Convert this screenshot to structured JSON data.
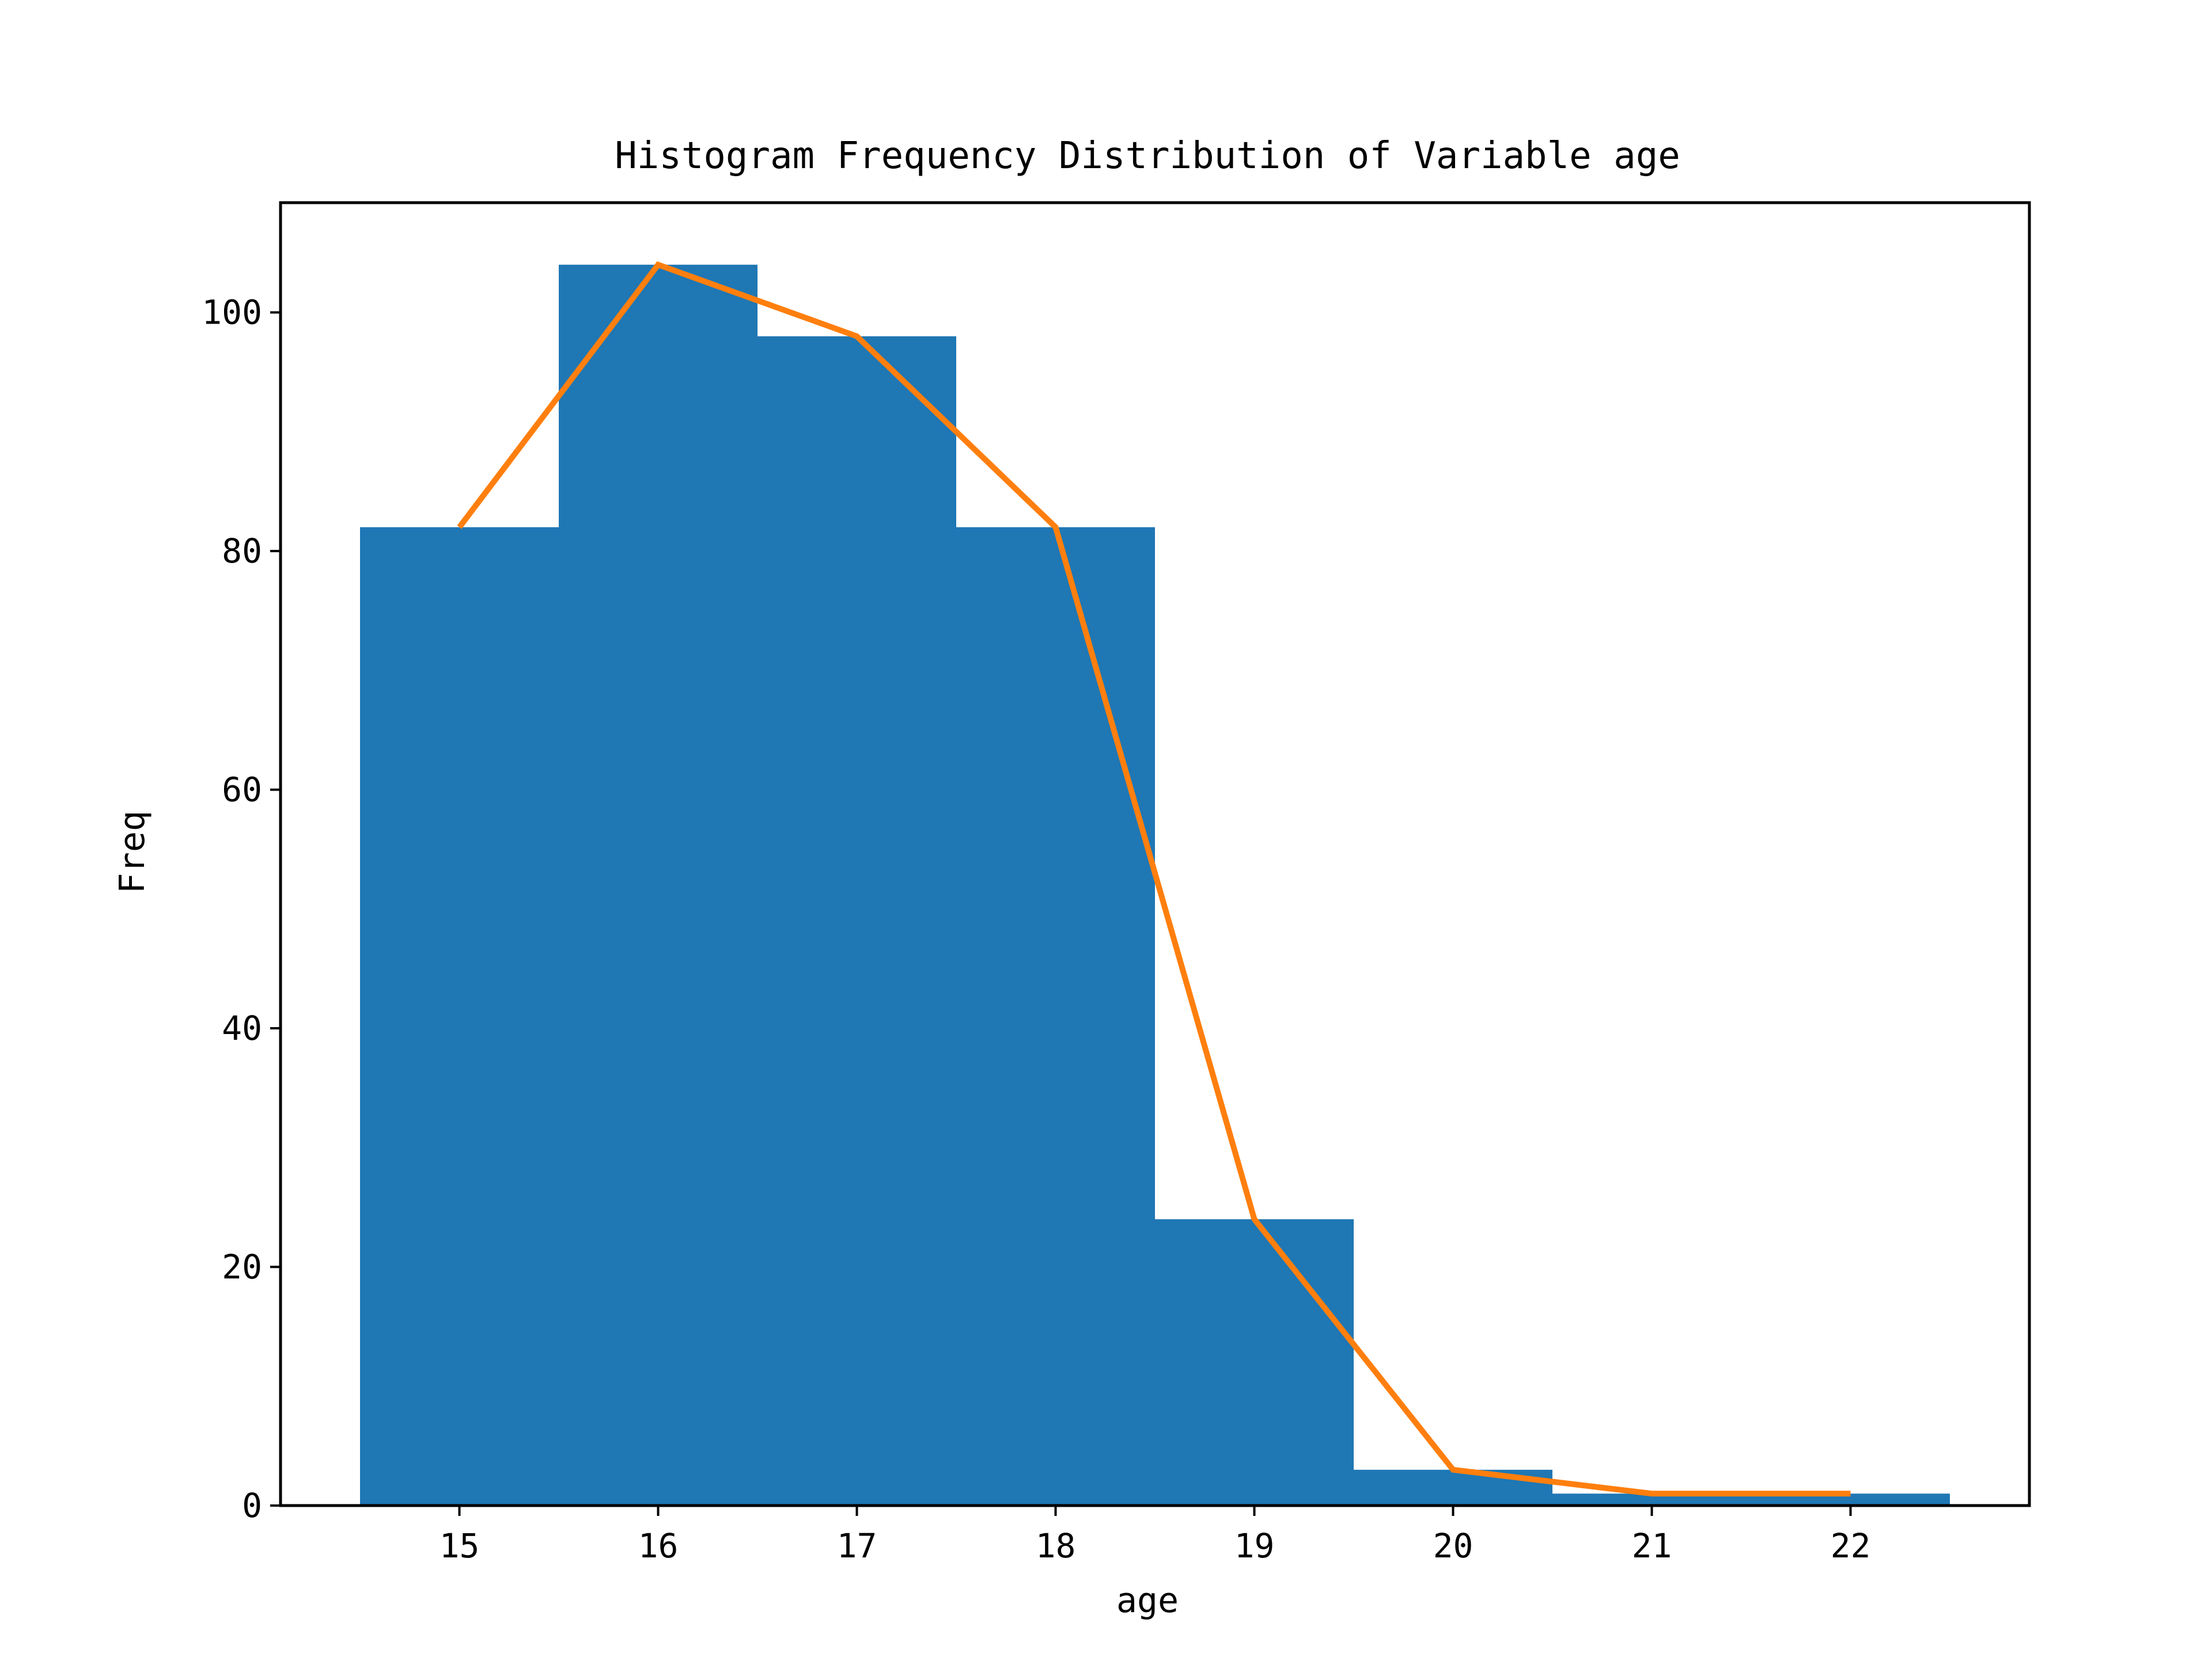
{
  "chart_data": {
    "type": "bar",
    "title": "Histogram Frequency Distribution of Variable age",
    "xlabel": "age",
    "ylabel": "Freq",
    "x_ticks": [
      "15",
      "16",
      "17",
      "18",
      "19",
      "20",
      "21",
      "22"
    ],
    "y_ticks": [
      "0",
      "20",
      "40",
      "60",
      "80",
      "100"
    ],
    "xlim": [
      14.1,
      22.9
    ],
    "ylim": [
      0,
      109.2
    ],
    "grid": false,
    "legend": "none",
    "bins": [
      {
        "x": 15,
        "count": 82
      },
      {
        "x": 16,
        "count": 104
      },
      {
        "x": 17,
        "count": 98
      },
      {
        "x": 18,
        "count": 82
      },
      {
        "x": 19,
        "count": 24
      },
      {
        "x": 20,
        "count": 3
      },
      {
        "x": 21,
        "count": 1
      },
      {
        "x": 22,
        "count": 1
      }
    ],
    "series": [
      {
        "type": "bar",
        "values": [
          82,
          104,
          98,
          82,
          24,
          3,
          1,
          1
        ],
        "color": "#1f77b4"
      },
      {
        "type": "line",
        "values": [
          82,
          104,
          98,
          82,
          24,
          3,
          1,
          1
        ],
        "color": "#ff7f0e"
      }
    ]
  }
}
